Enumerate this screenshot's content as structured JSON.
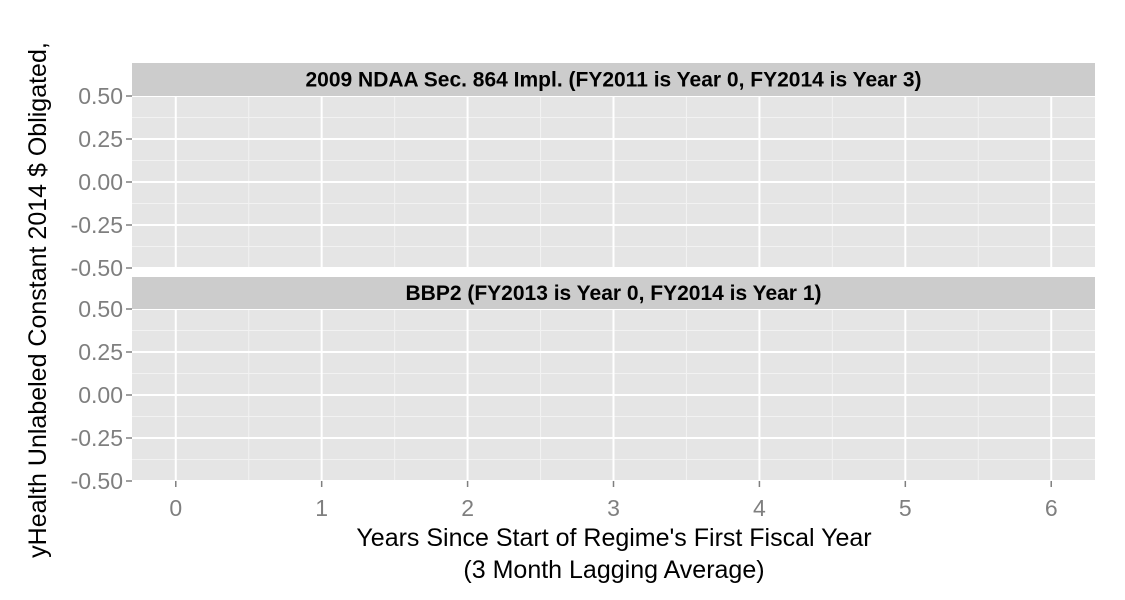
{
  "chart_data": {
    "type": "line",
    "xlabel_line1": "Years Since Start of Regime's First Fiscal Year",
    "xlabel_line2": "(3 Month Lagging Average)",
    "ylabel": "yHealth Unlabeled Constant 2014 $ Obligated,",
    "xlim": [
      -0.3,
      6.3
    ],
    "ylim": [
      -0.5,
      0.5
    ],
    "x_ticks": [
      0,
      1,
      2,
      3,
      4,
      5,
      6
    ],
    "x_tick_labels": [
      "0",
      "1",
      "2",
      "3",
      "4",
      "5",
      "6"
    ],
    "y_ticks": [
      0.5,
      0.25,
      0.0,
      -0.25,
      -0.5
    ],
    "y_tick_labels": [
      "0.50",
      "0.25",
      "0.00",
      "-0.25",
      "-0.50"
    ],
    "grid": true,
    "colors": {
      "panel_bg": "#e5e5e5",
      "strip_bg": "#cccccc",
      "grid_major": "#ffffff",
      "grid_minor": "#f2f2f2"
    },
    "panels": [
      {
        "strip_label": "2009 NDAA Sec. 864 Impl. (FY2011 is Year 0, FY2014 is Year 3)",
        "series": []
      },
      {
        "strip_label": "BBP2 (FY2013 is Year 0, FY2014 is Year 1)",
        "series": []
      }
    ]
  }
}
